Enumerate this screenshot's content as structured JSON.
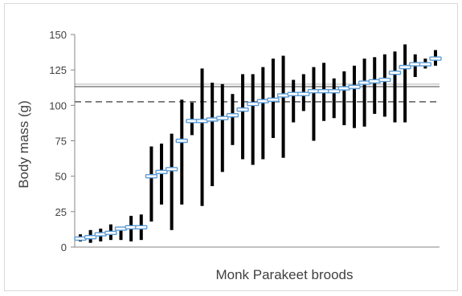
{
  "chart_data": {
    "type": "range-bar",
    "title": "",
    "xlabel": "Monk Parakeet broods",
    "ylabel": "Body mass (g)",
    "ylim": [
      0,
      150
    ],
    "yticks": [
      0,
      25,
      50,
      75,
      100,
      125,
      150
    ],
    "grid": false,
    "reference_lines": [
      {
        "value": 113.5,
        "style": "solid-thin",
        "color": "#808080"
      },
      {
        "value": 113.5,
        "style": "solid",
        "color": "#404040"
      },
      {
        "value": 102.5,
        "style": "dashed",
        "color": "#595959"
      }
    ],
    "series": [
      {
        "kind": "range",
        "color": "#000000",
        "ranges": [
          [
            4,
            9
          ],
          [
            3,
            12
          ],
          [
            4,
            13
          ],
          [
            5,
            16
          ],
          [
            5,
            14
          ],
          [
            4,
            22
          ],
          [
            5,
            23
          ],
          [
            18,
            71
          ],
          [
            30,
            73
          ],
          [
            12,
            80
          ],
          [
            30,
            104
          ],
          [
            79,
            102
          ],
          [
            29,
            126
          ],
          [
            43,
            116
          ],
          [
            53,
            115
          ],
          [
            72,
            108
          ],
          [
            62,
            122
          ],
          [
            58,
            122
          ],
          [
            62,
            127
          ],
          [
            77,
            133
          ],
          [
            63,
            135
          ],
          [
            88,
            118
          ],
          [
            96,
            122
          ],
          [
            75,
            127
          ],
          [
            89,
            130
          ],
          [
            91,
            119
          ],
          [
            86,
            124
          ],
          [
            84,
            128
          ],
          [
            85,
            133
          ],
          [
            94,
            134
          ],
          [
            92,
            136
          ],
          [
            88,
            138
          ],
          [
            88,
            143
          ],
          [
            120,
            136
          ],
          [
            126,
            133
          ],
          [
            128,
            139
          ]
        ]
      },
      {
        "kind": "mean",
        "color": "#5b9bd5",
        "values": [
          6,
          7,
          9,
          10,
          13,
          14,
          14,
          50,
          53,
          55,
          75,
          89,
          89,
          90,
          91,
          93,
          97,
          101,
          103,
          104,
          107,
          108,
          108,
          110,
          110,
          110,
          112,
          113,
          116,
          117,
          118,
          123,
          127,
          129,
          129,
          133
        ]
      }
    ]
  }
}
